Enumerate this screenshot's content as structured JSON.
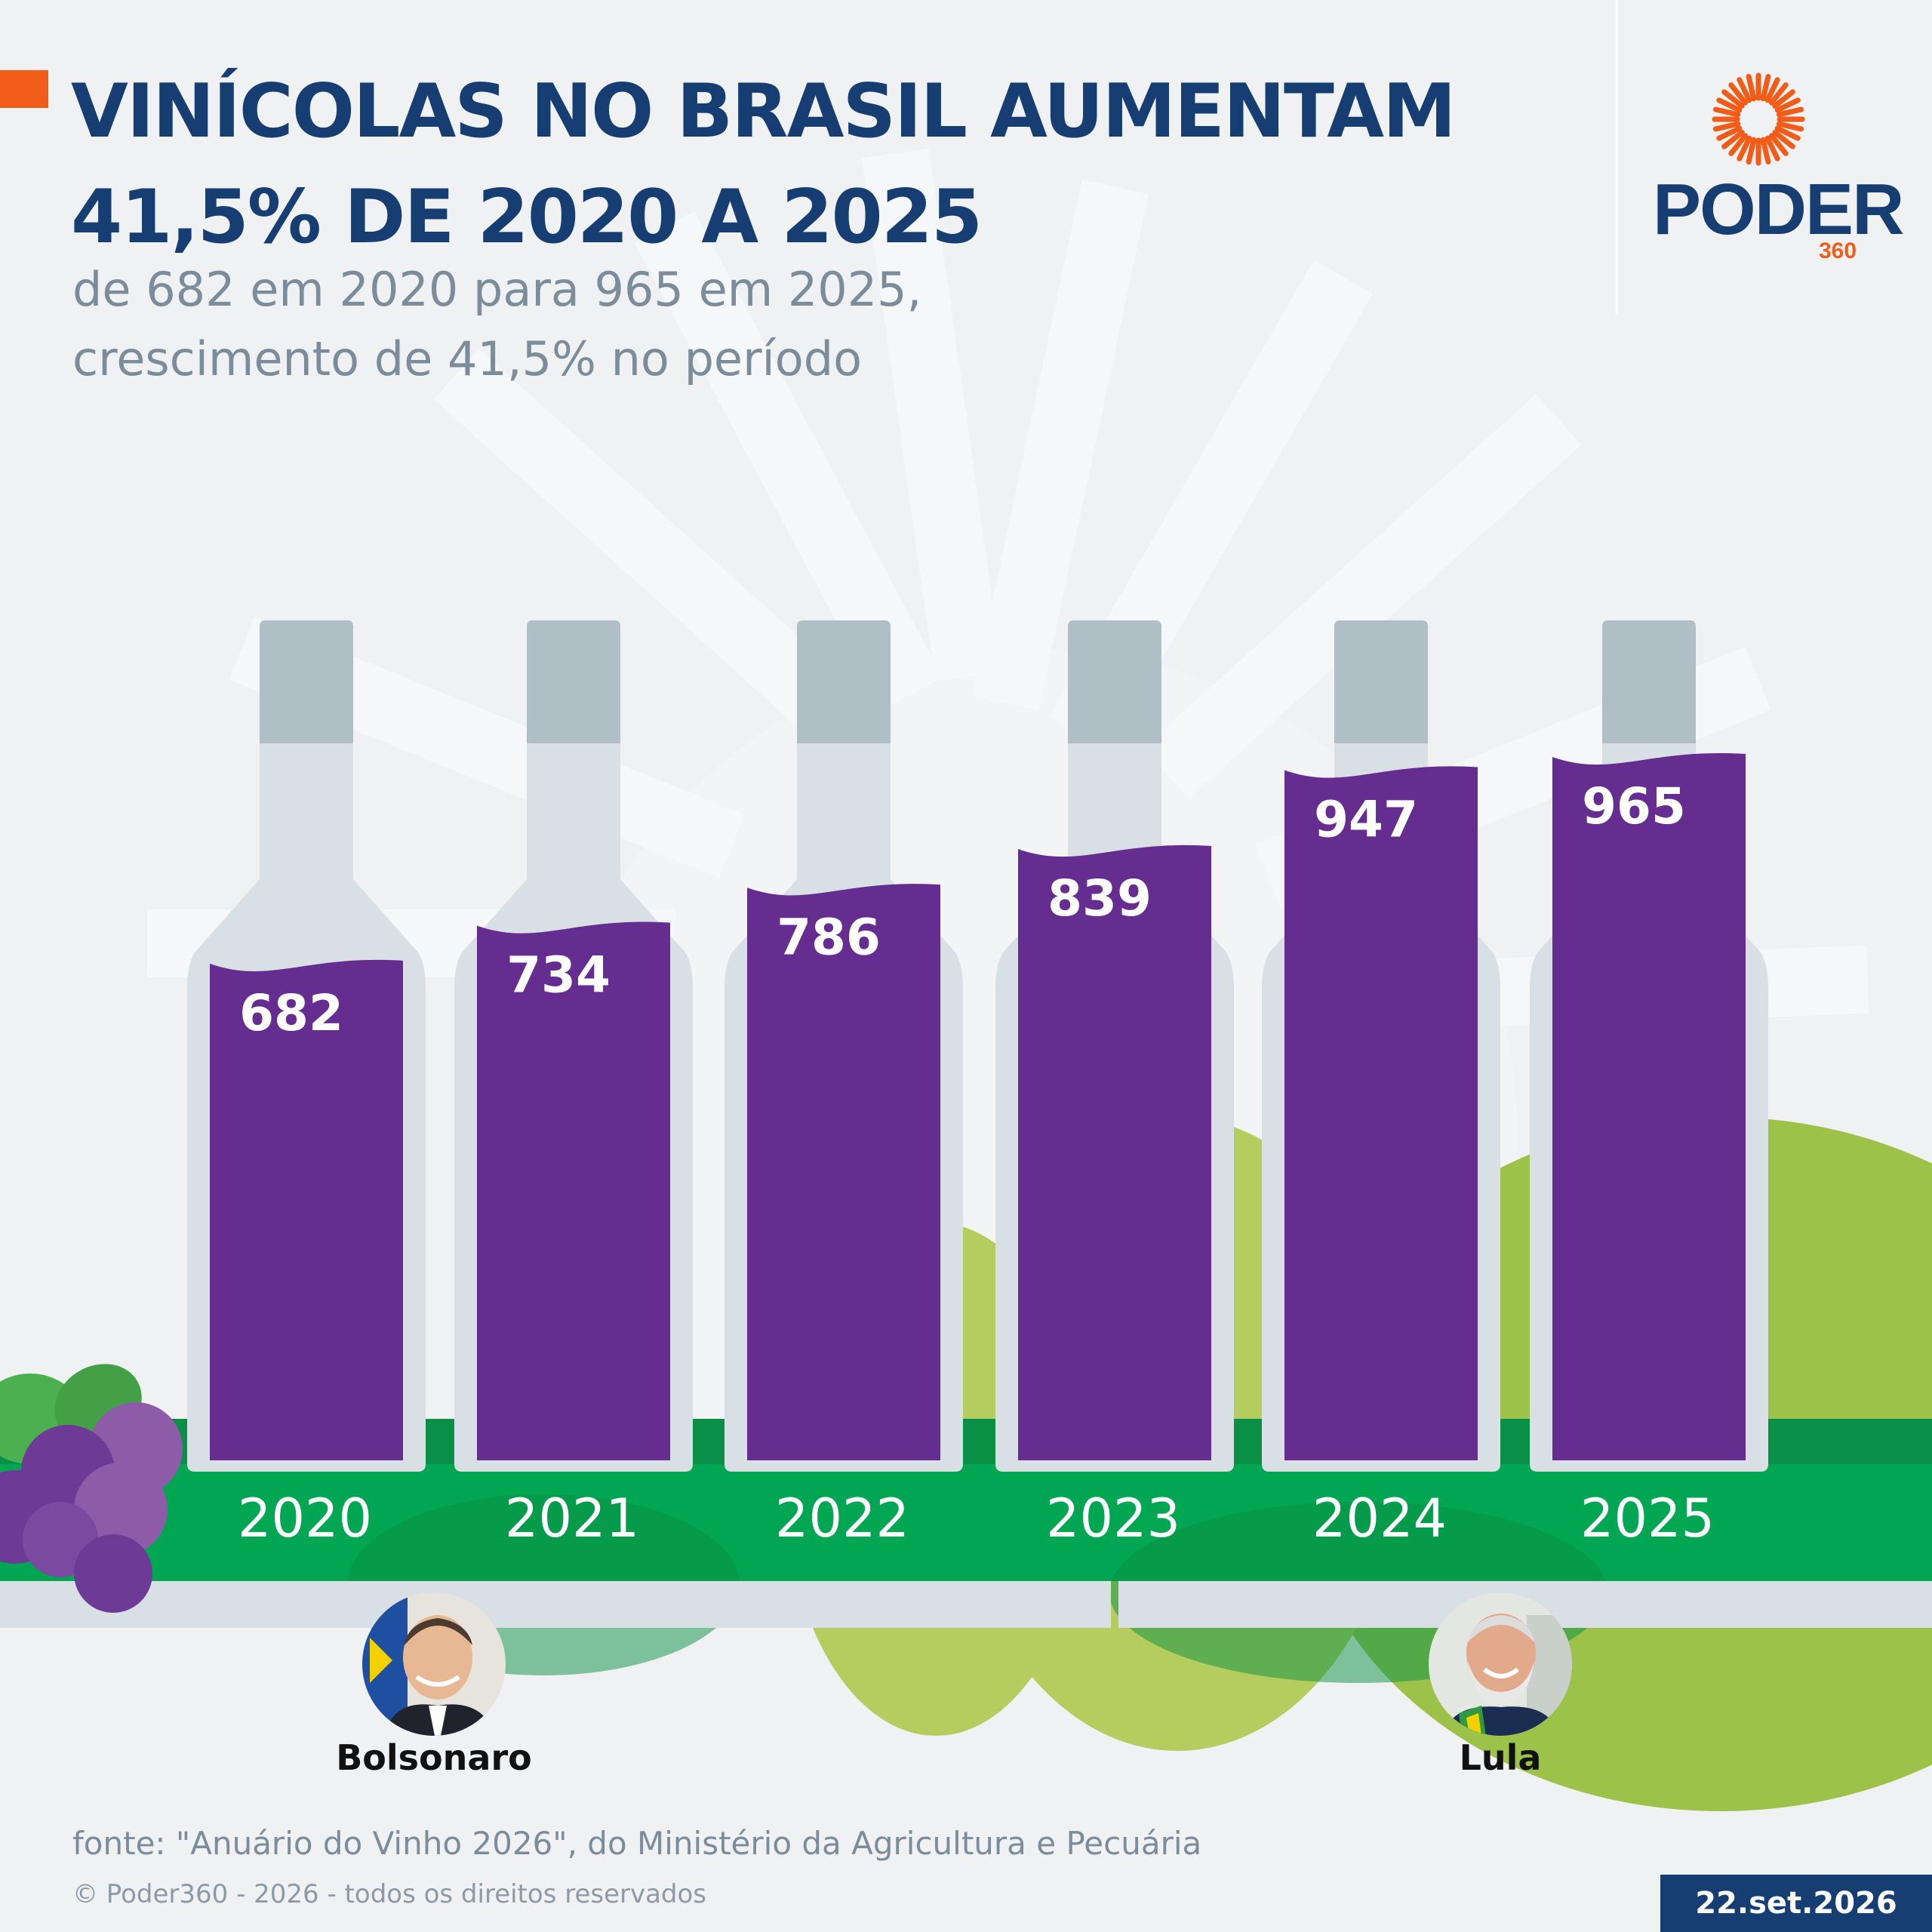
{
  "header": {
    "title": "VINÍCOLAS NO BRASIL AUMENTAM 41,5% DE 2020 A 2025",
    "subtitle_line1": "de 682 em 2020 para 965 em 2025,",
    "subtitle_line2": "crescimento de 41,5% no período"
  },
  "brand": {
    "logo_text": "PODER",
    "logo_number": "360",
    "color_orange": "#f25c19",
    "color_navy": "#163e72"
  },
  "chart_data": {
    "type": "bar",
    "title": "VINÍCOLAS NO BRASIL AUMENTAM 41,5% DE 2020 A 2025",
    "categories": [
      "2020",
      "2021",
      "2022",
      "2023",
      "2024",
      "2025"
    ],
    "values": [
      682,
      734,
      786,
      839,
      947,
      965
    ],
    "value_labels": [
      "682",
      "734",
      "786",
      "839",
      "947",
      "965"
    ],
    "bar_color": "#662d91",
    "ylim": [
      0,
      1400
    ]
  },
  "people": {
    "left": {
      "name": "Bolsonaro",
      "icon": "portrait-bolsonaro"
    },
    "right": {
      "name": "Lula",
      "icon": "portrait-lula"
    }
  },
  "footer": {
    "source": "fonte: \"Anuário do Vinho 2026\", do Ministério da Agricultura e Pecuária",
    "copyright": "© Poder360 - 2026 - todos os direitos reservados",
    "date": "22.set.2026"
  }
}
